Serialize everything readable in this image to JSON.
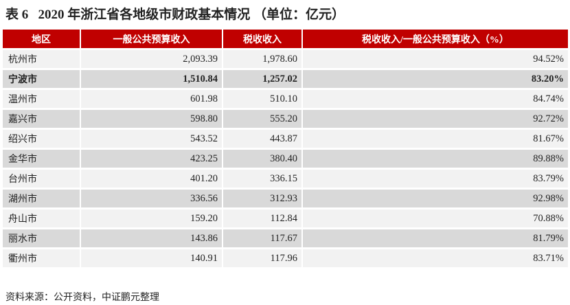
{
  "title": "表 6   2020 年浙江省各地级市财政基本情况 （单位：亿元）",
  "colors": {
    "header_bg": "#c00000",
    "row_light": "#f2f2f2",
    "row_dark": "#d9d9d9"
  },
  "table": {
    "headers": [
      "地区",
      "一般公共预算收入",
      "税收收入",
      "税收收入/一般公共预算收入（%）"
    ],
    "rows": [
      [
        "杭州市",
        "2,093.39",
        "1,978.60",
        "94.52%"
      ],
      [
        "宁波市",
        "1,510.84",
        "1,257.02",
        "83.20%"
      ],
      [
        "温州市",
        "601.98",
        "510.10",
        "84.74%"
      ],
      [
        "嘉兴市",
        "598.80",
        "555.20",
        "92.72%"
      ],
      [
        "绍兴市",
        "543.52",
        "443.87",
        "81.67%"
      ],
      [
        "金华市",
        "423.25",
        "380.40",
        "89.88%"
      ],
      [
        "台州市",
        "401.20",
        "336.15",
        "83.79%"
      ],
      [
        "湖州市",
        "336.56",
        "312.93",
        "92.98%"
      ],
      [
        "舟山市",
        "159.20",
        "112.84",
        "70.88%"
      ],
      [
        "丽水市",
        "143.86",
        "117.67",
        "81.79%"
      ],
      [
        "衢州市",
        "140.91",
        "117.96",
        "83.71%"
      ]
    ]
  },
  "source": "资料来源：公开资料，中证鹏元整理"
}
